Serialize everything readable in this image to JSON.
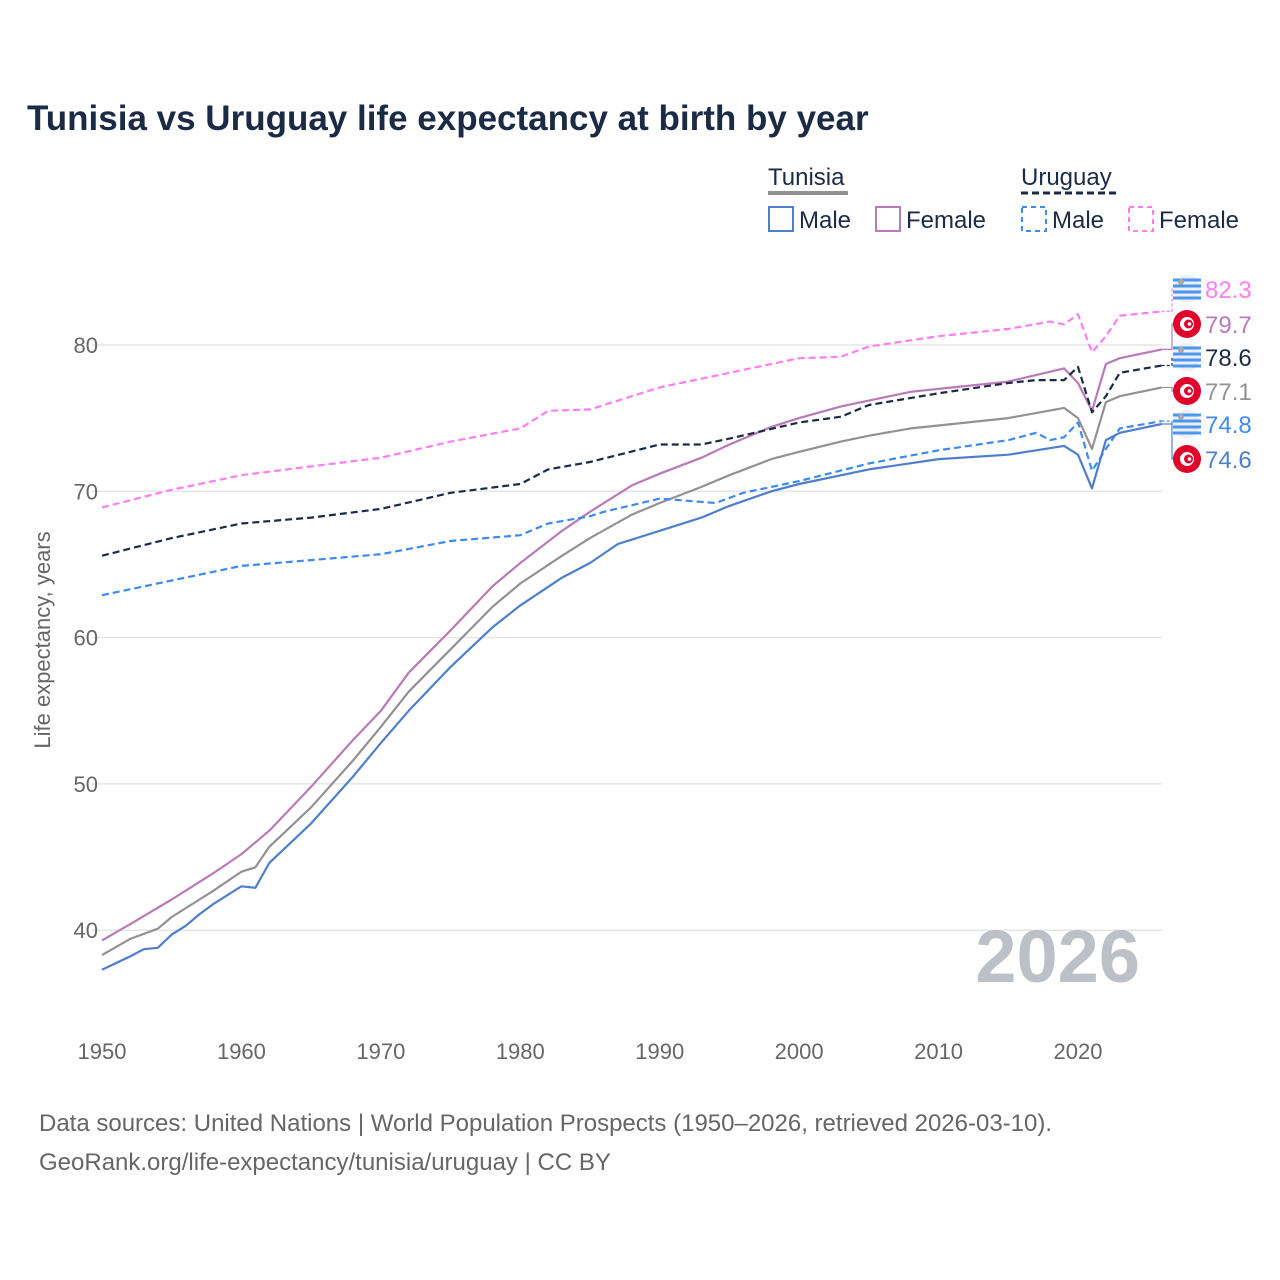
{
  "chart_data": {
    "type": "line",
    "title": "Tunisia vs Uruguay life expectancy at birth by year",
    "xlabel": "",
    "ylabel": "Life expectancy, years",
    "xlim": [
      1950,
      2026
    ],
    "ylim": [
      35,
      85
    ],
    "x_ticks": [
      "1950",
      "1960",
      "1970",
      "1980",
      "1990",
      "2000",
      "2010",
      "2020"
    ],
    "y_ticks": [
      "40",
      "50",
      "60",
      "70",
      "80"
    ],
    "grid": "horizontal",
    "legend_position": "top-right",
    "legend": {
      "groups": [
        {
          "label": "Tunisia",
          "items": [
            "Male",
            "Female"
          ]
        },
        {
          "label": "Uruguay",
          "items": [
            "Male",
            "Female"
          ]
        }
      ]
    },
    "watermark_year": "2026",
    "series": [
      {
        "name": "Uruguay Female",
        "country": "Uruguay",
        "sex": "Female",
        "color": "#ff7ef0",
        "dashed": true,
        "end_label": "82.3",
        "flag": "uruguay",
        "points": [
          [
            1950,
            68.9
          ],
          [
            1955,
            70.1
          ],
          [
            1960,
            71.1
          ],
          [
            1965,
            71.7
          ],
          [
            1970,
            72.3
          ],
          [
            1975,
            73.4
          ],
          [
            1980,
            74.3
          ],
          [
            1982,
            75.5
          ],
          [
            1985,
            75.6
          ],
          [
            1990,
            77.1
          ],
          [
            1995,
            78.1
          ],
          [
            2000,
            79.1
          ],
          [
            2003,
            79.2
          ],
          [
            2005,
            79.9
          ],
          [
            2010,
            80.6
          ],
          [
            2015,
            81.1
          ],
          [
            2018,
            81.6
          ],
          [
            2019,
            81.4
          ],
          [
            2020,
            82.1
          ],
          [
            2021,
            79.5
          ],
          [
            2022,
            80.6
          ],
          [
            2023,
            82.0
          ],
          [
            2026,
            82.3
          ]
        ]
      },
      {
        "name": "Tunisia Female",
        "country": "Tunisia",
        "sex": "Female",
        "color": "#b87bb8",
        "dashed": false,
        "end_label": "79.7",
        "flag": "tunisia",
        "points": [
          [
            1950,
            39.3
          ],
          [
            1952,
            40.4
          ],
          [
            1955,
            42.1
          ],
          [
            1958,
            43.9
          ],
          [
            1960,
            45.2
          ],
          [
            1962,
            46.8
          ],
          [
            1965,
            49.8
          ],
          [
            1968,
            53.0
          ],
          [
            1970,
            55.0
          ],
          [
            1972,
            57.6
          ],
          [
            1975,
            60.5
          ],
          [
            1978,
            63.5
          ],
          [
            1980,
            65.1
          ],
          [
            1983,
            67.3
          ],
          [
            1985,
            68.6
          ],
          [
            1988,
            70.4
          ],
          [
            1990,
            71.2
          ],
          [
            1993,
            72.3
          ],
          [
            1995,
            73.2
          ],
          [
            1998,
            74.4
          ],
          [
            2000,
            75.0
          ],
          [
            2003,
            75.8
          ],
          [
            2005,
            76.2
          ],
          [
            2008,
            76.8
          ],
          [
            2010,
            77.0
          ],
          [
            2015,
            77.5
          ],
          [
            2019,
            78.4
          ],
          [
            2020,
            77.4
          ],
          [
            2021,
            75.5
          ],
          [
            2022,
            78.7
          ],
          [
            2023,
            79.1
          ],
          [
            2026,
            79.7
          ]
        ]
      },
      {
        "name": "Uruguay",
        "country": "Uruguay",
        "sex": "Total",
        "color": "#1c2b45",
        "dashed": true,
        "end_label": "78.6",
        "flag": "uruguay",
        "points": [
          [
            1950,
            65.6
          ],
          [
            1955,
            66.8
          ],
          [
            1960,
            67.8
          ],
          [
            1965,
            68.2
          ],
          [
            1970,
            68.8
          ],
          [
            1975,
            69.9
          ],
          [
            1980,
            70.5
          ],
          [
            1982,
            71.5
          ],
          [
            1985,
            72.0
          ],
          [
            1990,
            73.2
          ],
          [
            1993,
            73.2
          ],
          [
            1995,
            73.6
          ],
          [
            2000,
            74.7
          ],
          [
            2003,
            75.1
          ],
          [
            2005,
            75.9
          ],
          [
            2010,
            76.7
          ],
          [
            2015,
            77.4
          ],
          [
            2017,
            77.6
          ],
          [
            2019,
            77.6
          ],
          [
            2020,
            78.5
          ],
          [
            2021,
            75.4
          ],
          [
            2022,
            76.5
          ],
          [
            2023,
            78.1
          ],
          [
            2026,
            78.6
          ]
        ]
      },
      {
        "name": "Tunisia",
        "country": "Tunisia",
        "sex": "Total",
        "color": "#929292",
        "dashed": false,
        "end_label": "77.1",
        "flag": "tunisia",
        "points": [
          [
            1950,
            38.3
          ],
          [
            1952,
            39.4
          ],
          [
            1954,
            40.1
          ],
          [
            1955,
            40.9
          ],
          [
            1958,
            42.7
          ],
          [
            1960,
            44.0
          ],
          [
            1961,
            44.3
          ],
          [
            1962,
            45.7
          ],
          [
            1965,
            48.4
          ],
          [
            1968,
            51.6
          ],
          [
            1970,
            53.9
          ],
          [
            1972,
            56.3
          ],
          [
            1975,
            59.2
          ],
          [
            1978,
            62.1
          ],
          [
            1980,
            63.7
          ],
          [
            1983,
            65.6
          ],
          [
            1985,
            66.8
          ],
          [
            1988,
            68.4
          ],
          [
            1990,
            69.2
          ],
          [
            1993,
            70.3
          ],
          [
            1995,
            71.1
          ],
          [
            1998,
            72.2
          ],
          [
            2000,
            72.7
          ],
          [
            2003,
            73.4
          ],
          [
            2005,
            73.8
          ],
          [
            2008,
            74.3
          ],
          [
            2010,
            74.5
          ],
          [
            2015,
            75.0
          ],
          [
            2019,
            75.7
          ],
          [
            2020,
            75.0
          ],
          [
            2021,
            72.9
          ],
          [
            2022,
            76.1
          ],
          [
            2023,
            76.5
          ],
          [
            2026,
            77.1
          ]
        ]
      },
      {
        "name": "Uruguay Male",
        "country": "Uruguay",
        "sex": "Male",
        "color": "#3d8bf0",
        "dashed": true,
        "end_label": "74.8",
        "flag": "uruguay",
        "points": [
          [
            1950,
            62.9
          ],
          [
            1955,
            63.9
          ],
          [
            1960,
            64.9
          ],
          [
            1965,
            65.3
          ],
          [
            1970,
            65.7
          ],
          [
            1975,
            66.6
          ],
          [
            1980,
            67.0
          ],
          [
            1982,
            67.8
          ],
          [
            1985,
            68.3
          ],
          [
            1986,
            68.6
          ],
          [
            1990,
            69.5
          ],
          [
            1994,
            69.2
          ],
          [
            1996,
            69.9
          ],
          [
            2000,
            70.7
          ],
          [
            2005,
            71.9
          ],
          [
            2010,
            72.8
          ],
          [
            2015,
            73.5
          ],
          [
            2017,
            74.0
          ],
          [
            2018,
            73.5
          ],
          [
            2019,
            73.7
          ],
          [
            2020,
            74.7
          ],
          [
            2021,
            71.4
          ],
          [
            2022,
            72.9
          ],
          [
            2023,
            74.3
          ],
          [
            2026,
            74.8
          ]
        ]
      },
      {
        "name": "Tunisia Male",
        "country": "Tunisia",
        "sex": "Male",
        "color": "#4f7fcc",
        "dashed": false,
        "end_label": "74.6",
        "flag": "tunisia",
        "points": [
          [
            1950,
            37.3
          ],
          [
            1952,
            38.2
          ],
          [
            1953,
            38.7
          ],
          [
            1954,
            38.8
          ],
          [
            1955,
            39.7
          ],
          [
            1956,
            40.3
          ],
          [
            1957,
            41.1
          ],
          [
            1958,
            41.8
          ],
          [
            1959,
            42.4
          ],
          [
            1960,
            43.0
          ],
          [
            1961,
            42.9
          ],
          [
            1962,
            44.6
          ],
          [
            1965,
            47.3
          ],
          [
            1968,
            50.5
          ],
          [
            1970,
            52.8
          ],
          [
            1972,
            55.0
          ],
          [
            1975,
            58.0
          ],
          [
            1978,
            60.7
          ],
          [
            1980,
            62.2
          ],
          [
            1983,
            64.1
          ],
          [
            1985,
            65.1
          ],
          [
            1987,
            66.4
          ],
          [
            1990,
            67.3
          ],
          [
            1993,
            68.2
          ],
          [
            1995,
            69.0
          ],
          [
            1998,
            70.0
          ],
          [
            2000,
            70.5
          ],
          [
            2005,
            71.5
          ],
          [
            2010,
            72.2
          ],
          [
            2015,
            72.5
          ],
          [
            2019,
            73.1
          ],
          [
            2020,
            72.5
          ],
          [
            2021,
            70.2
          ],
          [
            2022,
            73.5
          ],
          [
            2023,
            74.0
          ],
          [
            2026,
            74.6
          ]
        ]
      }
    ]
  },
  "footer": {
    "line1": "Data sources: United Nations | World Population Prospects (1950–2026, retrieved 2026-03-10).",
    "line2": "GeoRank.org/life-expectancy/tunisia/uruguay | CC BY"
  }
}
